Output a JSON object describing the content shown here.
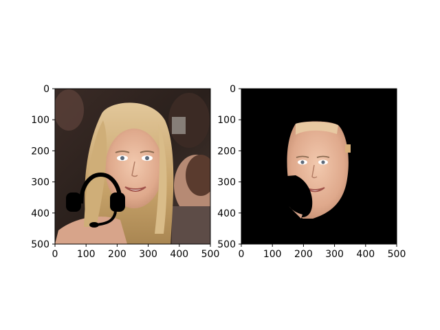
{
  "chart_data": [
    {
      "type": "image",
      "panel": "left",
      "content": "photo of a smiling woman with long blonde hair, with a black headset overlaid on the left side of her face",
      "xlim": [
        0,
        500
      ],
      "ylim": [
        500,
        0
      ],
      "xticks": [
        0,
        100,
        200,
        300,
        400,
        500
      ],
      "yticks": [
        0,
        100,
        200,
        300,
        400,
        500
      ],
      "xtick_labels": [
        "0",
        "100",
        "200",
        "300",
        "400",
        "500"
      ],
      "ytick_labels": [
        "0",
        "100",
        "200",
        "300",
        "400",
        "500"
      ],
      "grid": false
    },
    {
      "type": "image",
      "panel": "right",
      "content": "segmentation mask showing only the face region on a black background; area under the headset is masked out",
      "xlim": [
        0,
        500
      ],
      "ylim": [
        500,
        0
      ],
      "xticks": [
        0,
        100,
        200,
        300,
        400,
        500
      ],
      "yticks": [
        0,
        100,
        200,
        300,
        400,
        500
      ],
      "xtick_labels": [
        "0",
        "100",
        "200",
        "300",
        "400",
        "500"
      ],
      "ytick_labels": [
        "0",
        "100",
        "200",
        "300",
        "400",
        "500"
      ],
      "grid": false
    }
  ],
  "colors": {
    "background": "#ffffff",
    "mask_background": "#000000",
    "skin": "#e4b49a",
    "hair": "#c9a46a",
    "headset": "#000000"
  }
}
